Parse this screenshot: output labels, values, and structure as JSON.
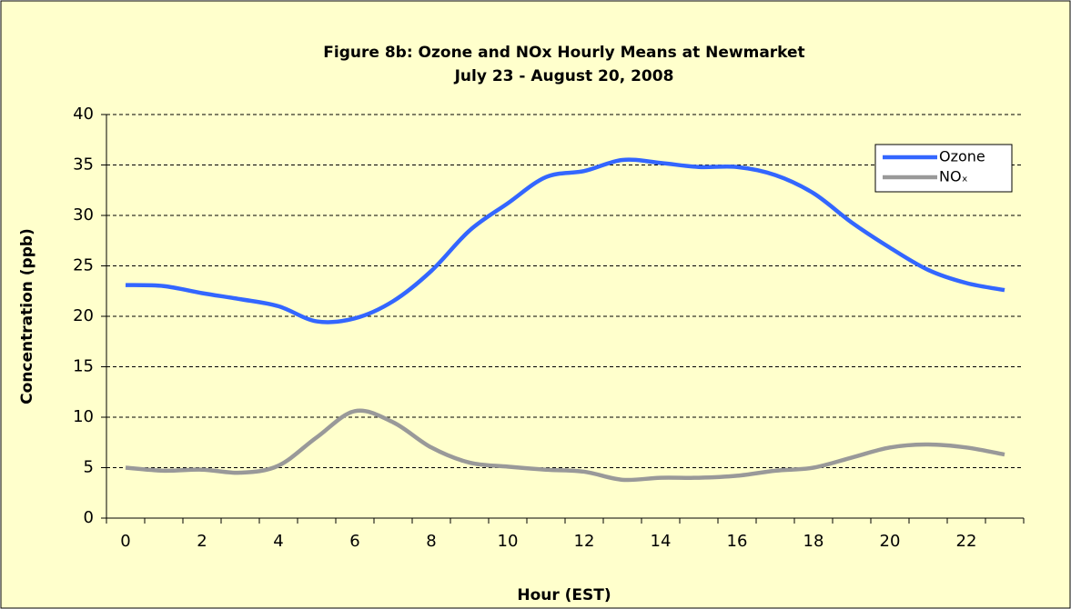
{
  "chart_data": {
    "type": "line",
    "title": "Figure 8b: Ozone and NOx Hourly Means at Newmarket",
    "subtitle": "July 23 - August 20, 2008",
    "x_label": "Hour (EST)",
    "y_label": "Concentration (ppb)",
    "categories": [
      0,
      null,
      2,
      null,
      4,
      null,
      6,
      null,
      8,
      null,
      10,
      null,
      12,
      null,
      14,
      null,
      16,
      null,
      18,
      null,
      20,
      null,
      22,
      null
    ],
    "series": [
      {
        "name": "Ozone",
        "color": "#3366ff",
        "values": [
          23.1,
          23.0,
          22.3,
          21.7,
          21.0,
          19.5,
          19.8,
          21.5,
          24.5,
          28.5,
          31.2,
          33.8,
          34.4,
          35.5,
          35.2,
          34.8,
          34.8,
          34.0,
          32.2,
          29.3,
          26.8,
          24.6,
          23.3,
          22.6
        ]
      },
      {
        "name": "NOₓ",
        "color": "#999999",
        "values": [
          5.0,
          4.7,
          4.8,
          4.5,
          5.2,
          8.0,
          10.6,
          9.5,
          7.0,
          5.5,
          5.1,
          4.8,
          4.6,
          3.8,
          4.0,
          4.0,
          4.2,
          4.7,
          5.0,
          6.0,
          7.0,
          7.3,
          7.0,
          6.3
        ]
      }
    ],
    "ylim": [
      0,
      40
    ],
    "yticks": [
      0,
      5,
      10,
      15,
      20,
      25,
      30,
      35,
      40
    ],
    "grid": true,
    "legend": "top-right"
  }
}
